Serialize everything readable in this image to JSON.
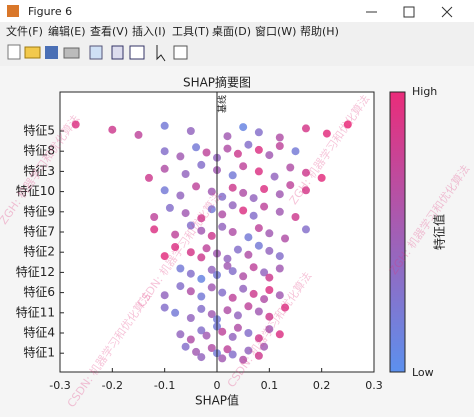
{
  "window": {
    "title": "Figure 6",
    "menu": [
      "文件(F)",
      "编辑(E)",
      "查看(V)",
      "插入(I)",
      "工具(T)",
      "桌面(D)",
      "窗口(W)",
      "帮助(H)"
    ]
  },
  "watermarks": [
    "ZGH: 机器学习和优化算法",
    "CSDN: 机器学习和优化算法"
  ],
  "chart_data": {
    "type": "scatter",
    "title": "SHAP摘要图",
    "x_label": "SHAP值",
    "baseline_label": "基线",
    "colorbar": {
      "label": "特征值",
      "high_label": "High",
      "low_label": "Low",
      "low_color": "#5c90ee",
      "high_color": "#ea2c7a"
    },
    "xlim": [
      -0.3,
      0.3
    ],
    "xticks": [
      -0.3,
      -0.2,
      -0.1,
      0,
      0.1,
      0.2,
      0.3
    ],
    "series": [
      {
        "name": "特征5",
        "shap": [
          -0.27,
          -0.2,
          -0.15,
          -0.1,
          -0.05,
          0.02,
          0.05,
          0.08,
          0.12,
          0.17,
          0.21,
          0.25
        ],
        "feature_values": [
          0.9,
          0.8,
          0.7,
          0.2,
          0.4,
          0.5,
          0.1,
          0.3,
          0.6,
          0.85,
          0.95,
          1.0
        ]
      },
      {
        "name": "特征8",
        "shap": [
          -0.1,
          -0.07,
          -0.04,
          -0.02,
          0.0,
          0.02,
          0.04,
          0.06,
          0.08,
          0.1,
          0.12,
          0.15
        ],
        "feature_values": [
          0.3,
          0.5,
          0.2,
          0.7,
          0.4,
          0.6,
          0.8,
          0.3,
          0.9,
          0.5,
          0.7,
          0.2
        ]
      },
      {
        "name": "特征3",
        "shap": [
          -0.13,
          -0.1,
          -0.06,
          -0.03,
          0.0,
          0.03,
          0.05,
          0.08,
          0.11,
          0.14,
          0.17,
          0.2
        ],
        "feature_values": [
          0.8,
          0.6,
          0.4,
          0.3,
          0.5,
          0.2,
          0.7,
          0.9,
          0.4,
          0.6,
          0.8,
          0.95
        ]
      },
      {
        "name": "特征10",
        "shap": [
          -0.1,
          -0.07,
          -0.04,
          -0.01,
          0.01,
          0.03,
          0.05,
          0.07,
          0.09,
          0.12,
          0.14,
          0.17
        ],
        "feature_values": [
          0.2,
          0.4,
          0.7,
          0.5,
          0.3,
          0.8,
          0.6,
          0.4,
          0.9,
          0.5,
          0.7,
          0.85
        ]
      },
      {
        "name": "特征9",
        "shap": [
          -0.12,
          -0.09,
          -0.06,
          -0.03,
          -0.01,
          0.01,
          0.03,
          0.05,
          0.07,
          0.09,
          0.12,
          0.15
        ],
        "feature_values": [
          0.7,
          0.3,
          0.5,
          0.8,
          0.2,
          0.6,
          0.4,
          0.9,
          0.3,
          0.7,
          0.5,
          0.8
        ]
      },
      {
        "name": "特征7",
        "shap": [
          -0.12,
          -0.08,
          -0.05,
          -0.03,
          -0.01,
          0.01,
          0.03,
          0.06,
          0.08,
          0.1,
          0.13,
          0.17
        ],
        "feature_values": [
          0.9,
          0.7,
          0.3,
          0.5,
          0.8,
          0.4,
          0.6,
          0.2,
          0.7,
          0.5,
          0.6,
          0.3
        ]
      },
      {
        "name": "特征2",
        "shap": [
          -0.1,
          -0.08,
          -0.05,
          -0.03,
          -0.02,
          0.0,
          0.02,
          0.04,
          0.06,
          0.08,
          0.1,
          0.12
        ],
        "feature_values": [
          0.95,
          0.9,
          0.85,
          0.8,
          0.7,
          0.5,
          0.4,
          0.3,
          0.6,
          0.2,
          0.4,
          0.3
        ]
      },
      {
        "name": "特征12",
        "shap": [
          -0.07,
          -0.05,
          -0.03,
          -0.01,
          0.0,
          0.02,
          0.03,
          0.05,
          0.07,
          0.09,
          0.1,
          0.12
        ],
        "feature_values": [
          0.2,
          0.3,
          0.1,
          0.4,
          0.2,
          0.5,
          0.3,
          0.6,
          0.7,
          0.4,
          0.8,
          0.5
        ]
      },
      {
        "name": "特征6",
        "shap": [
          -0.1,
          -0.07,
          -0.05,
          -0.03,
          -0.01,
          0.01,
          0.03,
          0.05,
          0.07,
          0.09,
          0.1,
          0.12
        ],
        "feature_values": [
          0.4,
          0.3,
          0.6,
          0.2,
          0.5,
          0.3,
          0.7,
          0.4,
          0.8,
          0.6,
          0.9,
          0.5
        ]
      },
      {
        "name": "特征11",
        "shap": [
          -0.1,
          -0.08,
          -0.05,
          -0.03,
          -0.01,
          0.0,
          0.02,
          0.04,
          0.06,
          0.08,
          0.1,
          0.13
        ],
        "feature_values": [
          0.3,
          0.2,
          0.4,
          0.3,
          0.5,
          0.2,
          0.6,
          0.4,
          0.7,
          0.5,
          0.8,
          0.9
        ]
      },
      {
        "name": "特征4",
        "shap": [
          -0.07,
          -0.05,
          -0.03,
          -0.02,
          0.0,
          0.01,
          0.03,
          0.04,
          0.06,
          0.08,
          0.1,
          0.12
        ],
        "feature_values": [
          0.4,
          0.6,
          0.3,
          0.5,
          0.2,
          0.7,
          0.4,
          0.6,
          0.3,
          0.8,
          0.5,
          0.9
        ]
      },
      {
        "name": "特征1",
        "shap": [
          -0.06,
          -0.04,
          -0.03,
          -0.01,
          0.0,
          0.01,
          0.02,
          0.03,
          0.05,
          0.06,
          0.08,
          0.09
        ],
        "feature_values": [
          0.3,
          0.5,
          0.4,
          0.6,
          0.2,
          0.5,
          0.7,
          0.3,
          0.6,
          0.4,
          0.8,
          0.5
        ]
      }
    ]
  }
}
